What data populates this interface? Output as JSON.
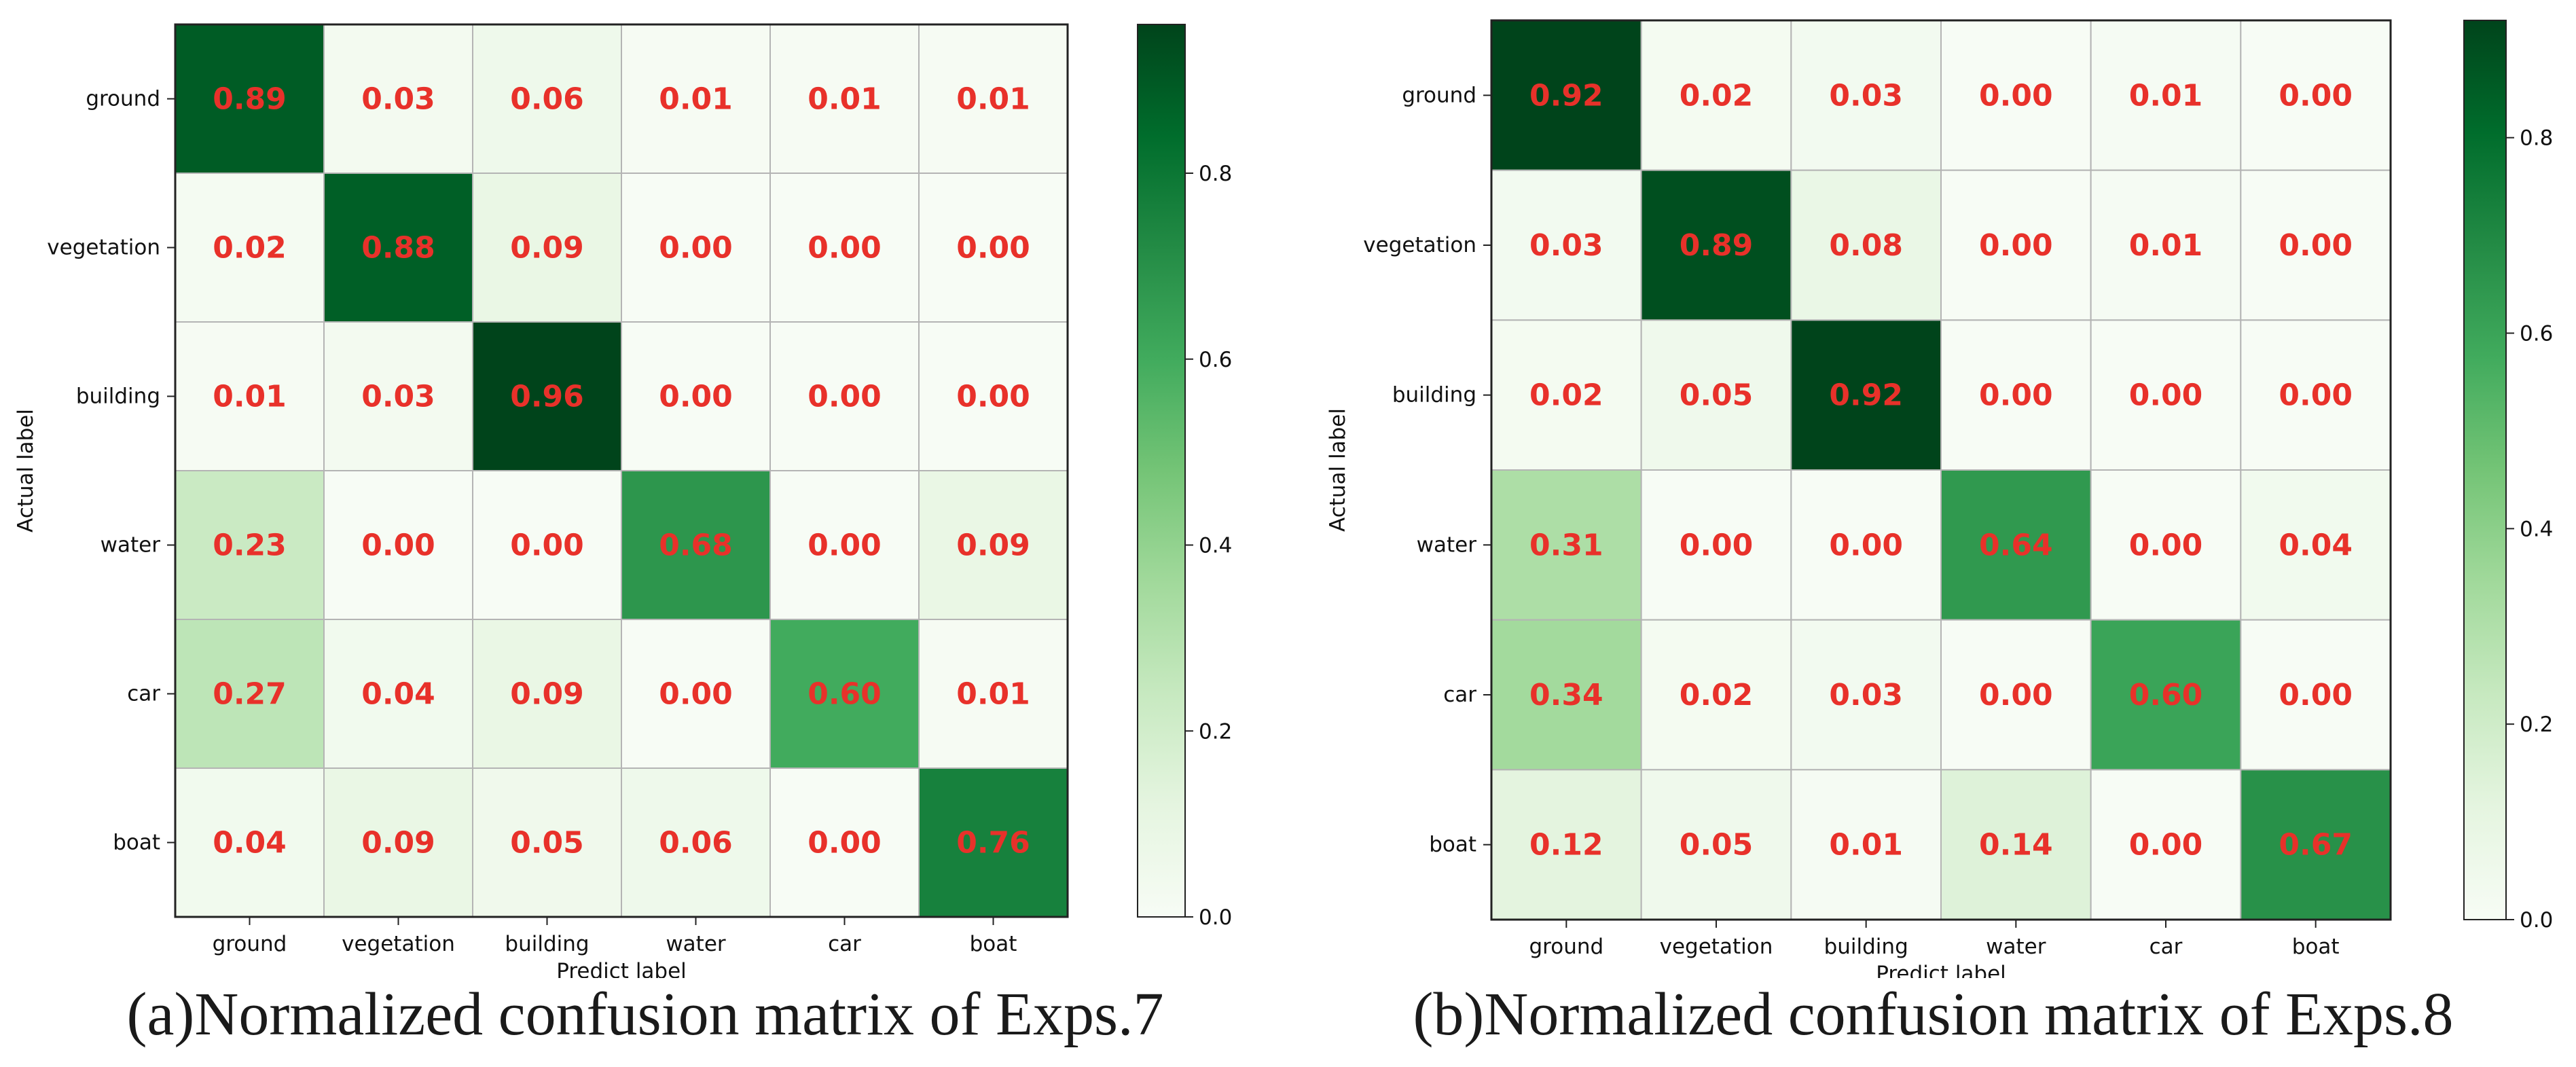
{
  "chart_data": [
    {
      "type": "heatmap",
      "title": "",
      "caption": "(a)Normalized confusion matrix of Exps.7",
      "xlabel": "Predict label",
      "ylabel": "Actual label",
      "x_categories": [
        "ground",
        "vegetation",
        "building",
        "water",
        "car",
        "boat"
      ],
      "y_categories": [
        "ground",
        "vegetation",
        "building",
        "water",
        "car",
        "boat"
      ],
      "values": [
        [
          0.89,
          0.03,
          0.06,
          0.01,
          0.01,
          0.01
        ],
        [
          0.02,
          0.88,
          0.09,
          0.0,
          0.0,
          0.0
        ],
        [
          0.01,
          0.03,
          0.96,
          0.0,
          0.0,
          0.0
        ],
        [
          0.23,
          0.0,
          0.0,
          0.68,
          0.0,
          0.09
        ],
        [
          0.27,
          0.04,
          0.09,
          0.0,
          0.6,
          0.01
        ],
        [
          0.04,
          0.09,
          0.05,
          0.06,
          0.0,
          0.76
        ]
      ],
      "colorbar": {
        "range": [
          0.0,
          0.96
        ],
        "ticks": [
          "0.0",
          "0.2",
          "0.4",
          "0.6",
          "0.8"
        ],
        "cmap": "Greens"
      },
      "annotation_color": "#e8312a"
    },
    {
      "type": "heatmap",
      "title": "",
      "caption": "(b)Normalized confusion matrix of Exps.8",
      "xlabel": "Predict label",
      "ylabel": "Actual label",
      "x_categories": [
        "ground",
        "vegetation",
        "building",
        "water",
        "car",
        "boat"
      ],
      "y_categories": [
        "ground",
        "vegetation",
        "building",
        "water",
        "car",
        "boat"
      ],
      "values": [
        [
          0.92,
          0.02,
          0.03,
          0.0,
          0.01,
          0.0
        ],
        [
          0.03,
          0.89,
          0.08,
          0.0,
          0.01,
          0.0
        ],
        [
          0.02,
          0.05,
          0.92,
          0.0,
          0.0,
          0.0
        ],
        [
          0.31,
          0.0,
          0.0,
          0.64,
          0.0,
          0.04
        ],
        [
          0.34,
          0.02,
          0.03,
          0.0,
          0.6,
          0.0
        ],
        [
          0.12,
          0.05,
          0.01,
          0.14,
          0.0,
          0.67
        ]
      ],
      "colorbar": {
        "range": [
          0.0,
          0.92
        ],
        "ticks": [
          "0.0",
          "0.2",
          "0.4",
          "0.6",
          "0.8"
        ],
        "cmap": "Greens"
      },
      "annotation_color": "#e8312a"
    }
  ]
}
